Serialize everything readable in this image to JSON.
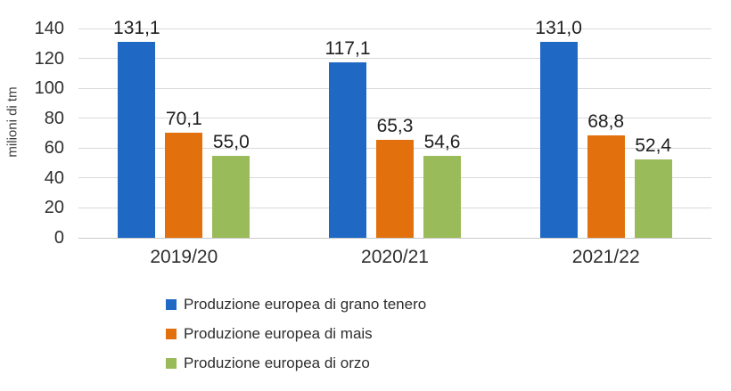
{
  "chart_data": {
    "type": "bar",
    "title": "",
    "ylabel": "milioni di tm",
    "xlabel": "",
    "categories": [
      "2019/20",
      "2020/21",
      "2021/22"
    ],
    "series": [
      {
        "name": "Produzione europea di grano tenero",
        "color": "#1F69C4",
        "values": [
          131.1,
          117.1,
          131.0
        ],
        "labels": [
          "131,1",
          "117,1",
          "131,0"
        ]
      },
      {
        "name": "Produzione europea di mais",
        "color": "#E2710D",
        "values": [
          70.1,
          65.3,
          68.8
        ],
        "labels": [
          "70,1",
          "65,3",
          "68,8"
        ]
      },
      {
        "name": "Produzione europea di orzo",
        "color": "#9ABB59",
        "values": [
          55.0,
          54.6,
          52.4
        ],
        "labels": [
          "55,0",
          "54,6",
          "52,4"
        ]
      }
    ],
    "ylim": [
      0,
      140
    ],
    "yticks": [
      0,
      20,
      40,
      60,
      80,
      100,
      120,
      140
    ],
    "grid": true,
    "legend_position": "bottom-left",
    "colors": {
      "gridline": "#D9D9D9",
      "baseline": "#C9C9C9",
      "text": "#2E2E2E"
    }
  }
}
